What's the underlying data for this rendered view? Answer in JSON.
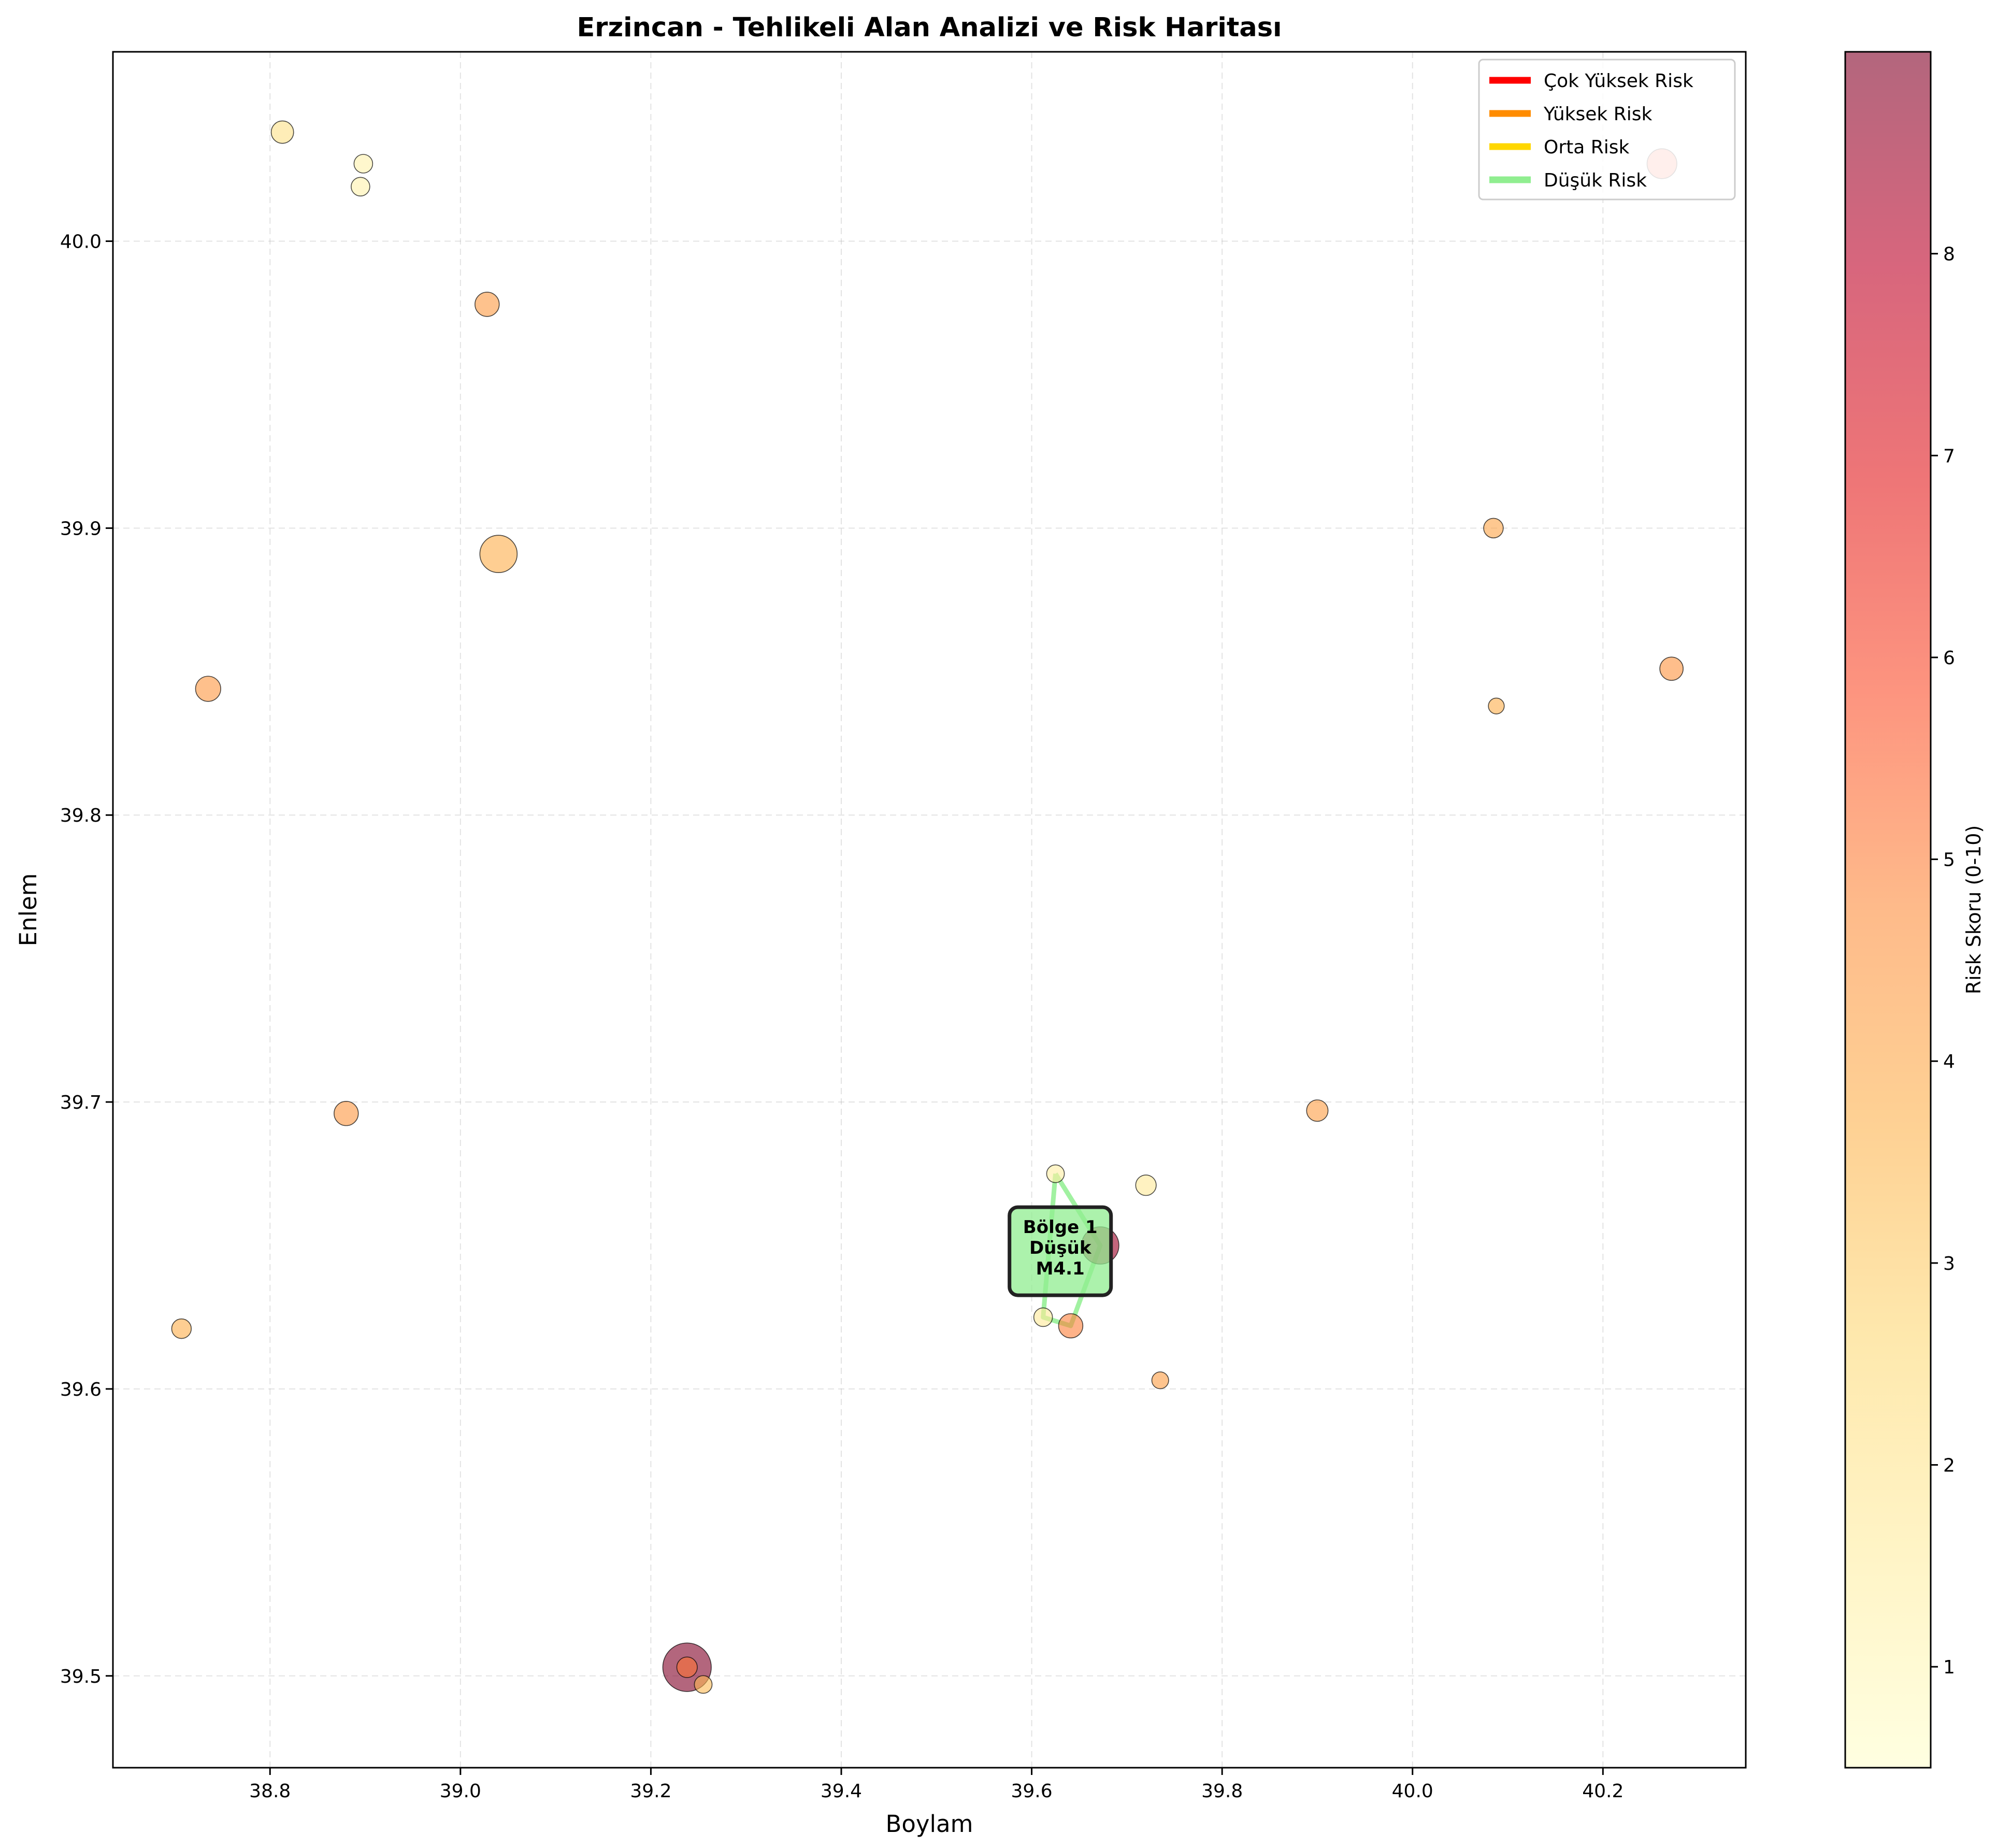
{
  "chart_data": {
    "type": "scatter",
    "title": "Erzincan - Tehlikeli Alan Analizi ve Risk Haritası",
    "xlabel": "Boylam",
    "ylabel": "Enlem",
    "xlim": [
      38.635,
      40.35
    ],
    "ylim": [
      39.468,
      40.066
    ],
    "xticks": [
      38.8,
      39.0,
      39.2,
      39.4,
      39.6,
      39.8,
      40.0,
      40.2
    ],
    "yticks": [
      39.5,
      39.6,
      39.7,
      39.8,
      39.9,
      40.0
    ],
    "grid": true,
    "legend_position": "top-right",
    "legend": [
      {
        "label": "Çok Yüksek Risk",
        "color": "#ff0000"
      },
      {
        "label": "Yüksek Risk",
        "color": "#ff8c00"
      },
      {
        "label": "Orta Risk",
        "color": "#ffd700"
      },
      {
        "label": "Düşük Risk",
        "color": "#90ee90"
      }
    ],
    "colorbar": {
      "label": "Risk Skoru (0-10)",
      "range": [
        0.5,
        9.0
      ],
      "ticks": [
        1,
        2,
        3,
        4,
        5,
        6,
        7,
        8
      ],
      "colormap": "YlOrRd",
      "alpha": 0.6
    },
    "points": [
      {
        "x": 38.813,
        "y": 40.038,
        "risk": 2.2,
        "size": 1.4
      },
      {
        "x": 38.898,
        "y": 40.027,
        "risk": 1.3,
        "size": 1.0
      },
      {
        "x": 38.895,
        "y": 40.019,
        "risk": 1.3,
        "size": 1.0
      },
      {
        "x": 39.028,
        "y": 39.978,
        "risk": 4.4,
        "size": 1.6
      },
      {
        "x": 39.04,
        "y": 39.891,
        "risk": 3.8,
        "size": 3.0
      },
      {
        "x": 38.735,
        "y": 39.844,
        "risk": 4.5,
        "size": 1.7
      },
      {
        "x": 38.88,
        "y": 39.696,
        "risk": 4.5,
        "size": 1.6
      },
      {
        "x": 38.707,
        "y": 39.621,
        "risk": 3.8,
        "size": 1.1
      },
      {
        "x": 39.238,
        "y": 39.503,
        "risk": 9.0,
        "size": 4.2
      },
      {
        "x": 39.238,
        "y": 39.503,
        "risk": 5.2,
        "size": 1.2
      },
      {
        "x": 39.255,
        "y": 39.497,
        "risk": 3.5,
        "size": 0.9
      },
      {
        "x": 39.625,
        "y": 39.675,
        "risk": 1.5,
        "size": 0.9
      },
      {
        "x": 39.72,
        "y": 39.671,
        "risk": 1.8,
        "size": 1.2
      },
      {
        "x": 39.672,
        "y": 39.65,
        "risk": 8.5,
        "size": 3.0
      },
      {
        "x": 39.612,
        "y": 39.625,
        "risk": 1.8,
        "size": 1.0
      },
      {
        "x": 39.641,
        "y": 39.622,
        "risk": 5.0,
        "size": 1.6
      },
      {
        "x": 39.735,
        "y": 39.603,
        "risk": 4.3,
        "size": 0.8
      },
      {
        "x": 39.9,
        "y": 39.697,
        "risk": 4.3,
        "size": 1.3
      },
      {
        "x": 40.085,
        "y": 39.9,
        "risk": 4.1,
        "size": 1.1
      },
      {
        "x": 40.088,
        "y": 39.838,
        "risk": 3.8,
        "size": 0.7
      },
      {
        "x": 40.272,
        "y": 39.851,
        "risk": 4.6,
        "size": 1.5
      },
      {
        "x": 40.262,
        "y": 40.027,
        "risk": 5.8,
        "size": 2.2
      }
    ],
    "zones": [
      {
        "name": "Bölge 1",
        "risk_label": "Düşük",
        "magnitude": "M4.1",
        "color": "#90ee90",
        "hull": [
          [
            39.625,
            39.675
          ],
          [
            39.672,
            39.65
          ],
          [
            39.641,
            39.622
          ],
          [
            39.612,
            39.625
          ]
        ],
        "label_at": [
          39.63,
          39.648
        ]
      }
    ]
  }
}
